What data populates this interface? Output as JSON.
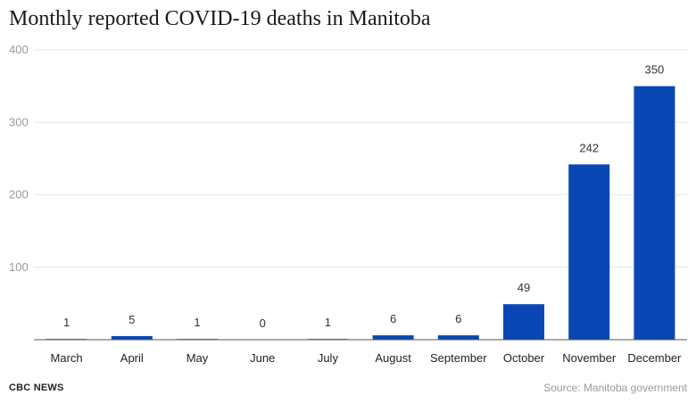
{
  "title": "Monthly reported COVID-19 deaths in Manitoba",
  "footer": {
    "brand": "CBC NEWS",
    "source": "Source: Manitoba government"
  },
  "colors": {
    "bar": "#0a47b4",
    "grid": "#e6e6e6",
    "axis": "#555555",
    "ytick": "#9a9a9a"
  },
  "chart_data": {
    "type": "bar",
    "title": "Monthly reported COVID-19 deaths in Manitoba",
    "categories": [
      "March",
      "April",
      "May",
      "June",
      "July",
      "August",
      "September",
      "October",
      "November",
      "December"
    ],
    "values": [
      1,
      5,
      1,
      0,
      1,
      6,
      6,
      49,
      242,
      350
    ],
    "ylim": [
      0,
      400
    ],
    "yticks": [
      100,
      200,
      300,
      400
    ],
    "grid": true,
    "legend": "none"
  }
}
